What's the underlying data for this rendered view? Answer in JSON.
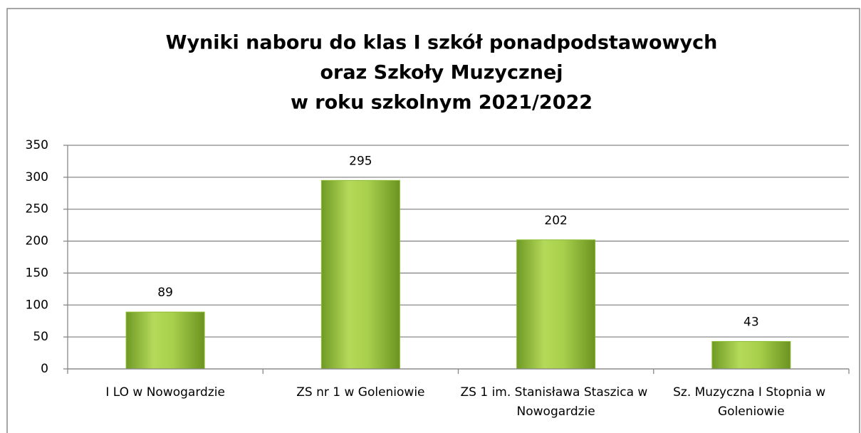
{
  "chart_data": {
    "type": "bar",
    "title": [
      "Wyniki naboru do klas I szkół ponadpodstawowych",
      "oraz Szkoły Muzycznej",
      "w roku szkolnym 2021/2022"
    ],
    "categories": [
      "I LO w Nowogardzie",
      "ZS nr 1 w Goleniowie",
      "ZS 1 im. Stanisława Staszica w Nowogardzie",
      "Sz. Muzyczna I Stopnia w Goleniowie"
    ],
    "values": [
      89,
      295,
      202,
      43
    ],
    "color": "#8dbb33",
    "ylim": [
      0,
      350
    ],
    "yticks": [
      0,
      50,
      100,
      150,
      200,
      250,
      300,
      350
    ],
    "grid": true
  }
}
